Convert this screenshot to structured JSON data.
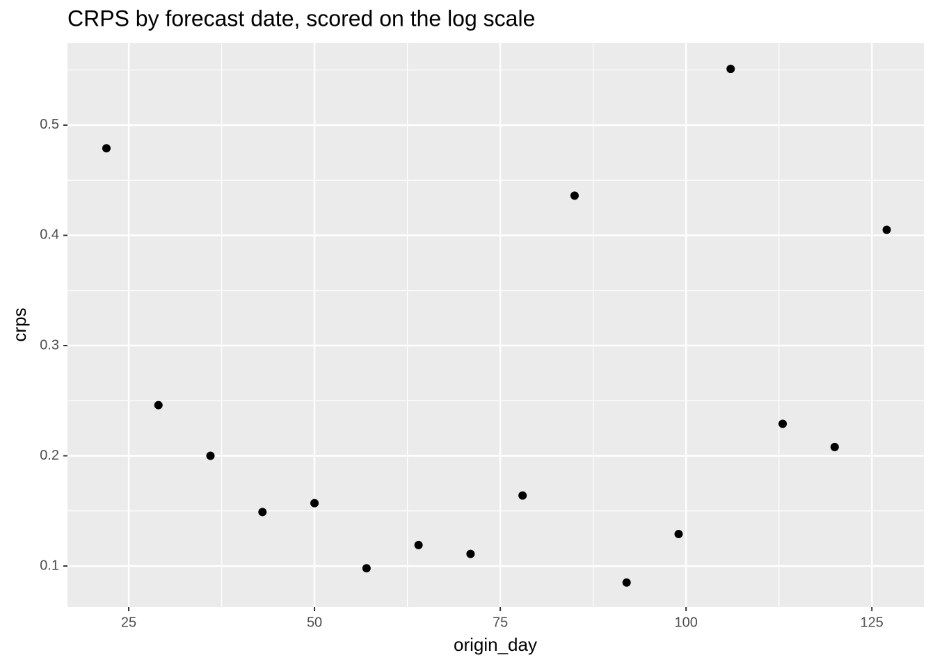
{
  "chart_data": {
    "type": "scatter",
    "title": "CRPS by forecast date, scored on the log scale",
    "x_label": "origin_day",
    "y_label": "crps",
    "x": [
      22,
      29,
      36,
      43,
      50,
      57,
      64,
      71,
      78,
      85,
      92,
      99,
      106,
      113,
      120,
      127
    ],
    "values": [
      0.479,
      0.246,
      0.2,
      0.149,
      0.157,
      0.098,
      0.119,
      0.111,
      0.164,
      0.436,
      0.085,
      0.129,
      0.551,
      0.229,
      0.208,
      0.405
    ],
    "color": "#000000",
    "xlim": [
      16.76,
      132.0
    ],
    "ylim": [
      0.0628,
      0.5744
    ],
    "xticks": [
      25,
      50,
      75,
      100,
      125
    ],
    "yticks": [
      0.1,
      0.2,
      0.3,
      0.4,
      0.5
    ],
    "grid": true
  }
}
